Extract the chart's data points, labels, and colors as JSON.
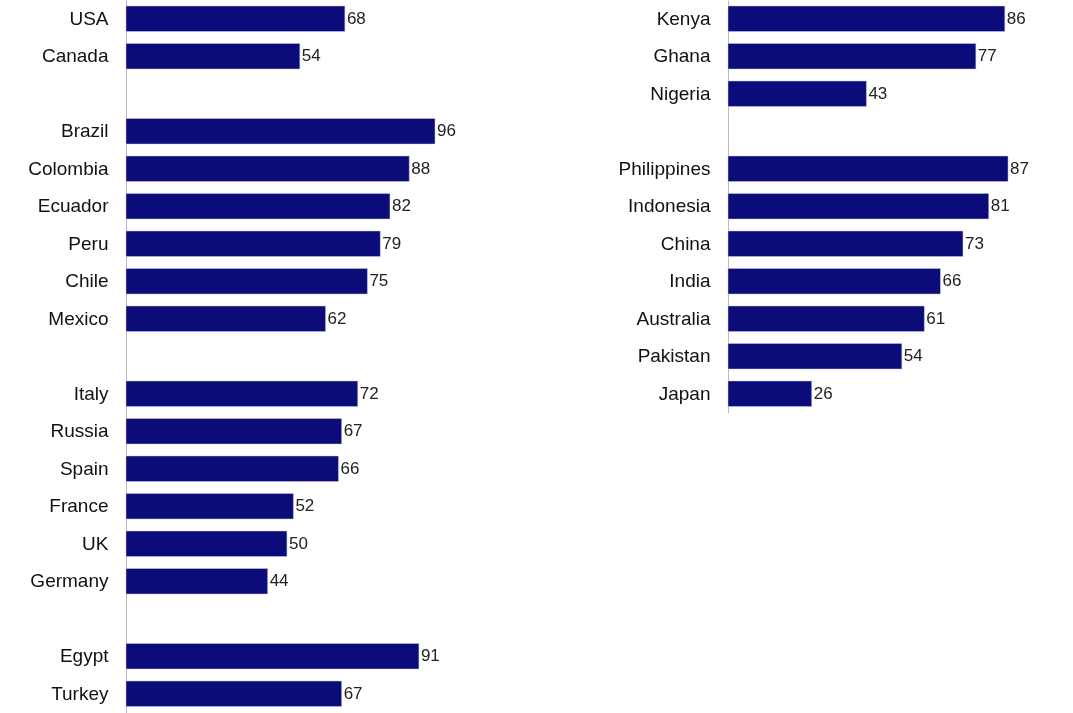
{
  "chart_data": [
    {
      "type": "bar",
      "orientation": "horizontal",
      "categories": [
        "USA",
        "Canada",
        null,
        "Brazil",
        "Colombia",
        "Ecuador",
        "Peru",
        "Chile",
        "Mexico",
        null,
        "Italy",
        "Russia",
        "Spain",
        "France",
        "UK",
        "Germany",
        null,
        "Egypt",
        "Turkey"
      ],
      "values": [
        68,
        54,
        null,
        96,
        88,
        82,
        79,
        75,
        62,
        null,
        72,
        67,
        66,
        52,
        50,
        44,
        null,
        91,
        67
      ],
      "color": "#0b0b7a",
      "data_labels": true
    },
    {
      "type": "bar",
      "orientation": "horizontal",
      "categories": [
        "Kenya",
        "Ghana",
        "Nigeria",
        null,
        "Philippines",
        "Indonesia",
        "China",
        "India",
        "Australia",
        "Pakistan",
        "Japan"
      ],
      "values": [
        86,
        77,
        43,
        null,
        87,
        81,
        73,
        66,
        61,
        54,
        26
      ],
      "color": "#0b0b7a",
      "data_labels": true
    }
  ]
}
